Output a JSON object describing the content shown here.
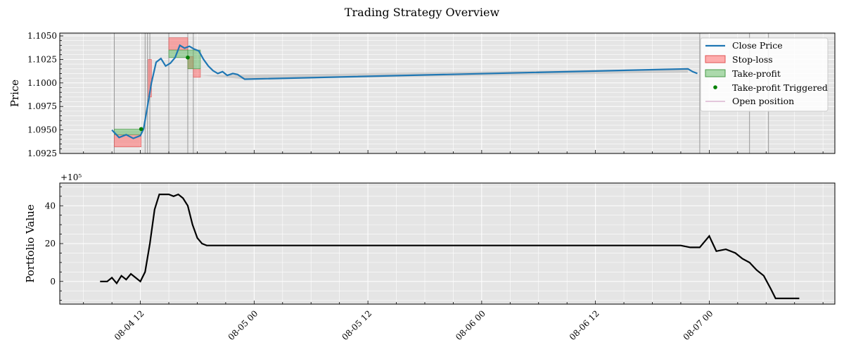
{
  "figure": {
    "title": "Trading Strategy Overview"
  },
  "colors": {
    "axes_bg": "#e5e5e5",
    "grid": "#ffffff",
    "price_line": "#1f77b4",
    "portfolio_line": "#000000",
    "stop_loss": "#ff6b6b",
    "take_profit": "#5cb85c",
    "tp_dot": "#008000",
    "open_position": "#d4a6c8"
  },
  "chart_data": [
    {
      "type": "line",
      "name": "price-panel",
      "ylabel": "Price",
      "x_range": [
        "2024-08-04 03:30",
        "2024-08-07 13:15"
      ],
      "ylim": [
        1.0925,
        1.1053
      ],
      "yticks": [
        1.0925,
        1.095,
        1.0975,
        1.1,
        1.1025,
        1.105
      ],
      "ytick_labels": [
        "1.0925",
        "1.0950",
        "1.0975",
        "1.1000",
        "1.1025",
        "1.1050"
      ],
      "grid": true,
      "legend_position": "top-right",
      "legend": [
        "Close Price",
        "Stop-loss",
        "Take-profit",
        "Take-profit Triggered",
        "Open position"
      ],
      "close_price": {
        "name": "Close Price",
        "x": [
          "2024-08-04 09:00",
          "2024-08-04 09:45",
          "2024-08-04 10:30",
          "2024-08-04 11:15",
          "2024-08-04 12:00",
          "2024-08-04 12:20",
          "2024-08-04 12:45",
          "2024-08-04 13:10",
          "2024-08-04 13:40",
          "2024-08-04 14:10",
          "2024-08-04 14:40",
          "2024-08-04 15:10",
          "2024-08-04 15:40",
          "2024-08-04 16:10",
          "2024-08-04 16:40",
          "2024-08-04 17:10",
          "2024-08-04 17:40",
          "2024-08-04 18:10",
          "2024-08-04 18:40",
          "2024-08-04 19:10",
          "2024-08-04 19:40",
          "2024-08-04 20:10",
          "2024-08-04 20:40",
          "2024-08-04 21:10",
          "2024-08-04 21:45",
          "2024-08-04 22:15",
          "2024-08-04 23:00",
          "2024-08-06 21:45",
          "2024-08-06 22:15",
          "2024-08-06 22:45"
        ],
        "y": [
          1.095,
          1.0942,
          1.0945,
          1.0941,
          1.0944,
          1.0951,
          1.0975,
          1.1,
          1.1022,
          1.1026,
          1.1018,
          1.1021,
          1.1027,
          1.104,
          1.1037,
          1.1039,
          1.1036,
          1.1034,
          1.1025,
          1.1018,
          1.1013,
          1.101,
          1.1012,
          1.1008,
          1.101,
          1.1009,
          1.1004,
          1.1015,
          1.1012,
          1.101
        ]
      },
      "stop_loss_zones": [
        {
          "x0": "2024-08-04 09:15",
          "x1": "2024-08-04 12:05",
          "y0": 1.0932,
          "y1": 1.0945
        },
        {
          "x0": "2024-08-04 12:50",
          "x1": "2024-08-04 13:10",
          "y0": 1.0985,
          "y1": 1.1025
        },
        {
          "x0": "2024-08-04 15:00",
          "x1": "2024-08-04 17:00",
          "y0": 1.1035,
          "y1": 1.1048
        },
        {
          "x0": "2024-08-04 17:00",
          "x1": "2024-08-04 17:35",
          "y0": 1.1015,
          "y1": 1.1028
        },
        {
          "x0": "2024-08-04 17:35",
          "x1": "2024-08-04 18:20",
          "y0": 1.1006,
          "y1": 1.1015
        }
      ],
      "take_profit_zones": [
        {
          "x0": "2024-08-04 09:15",
          "x1": "2024-08-04 12:05",
          "y0": 1.0945,
          "y1": 1.0951
        },
        {
          "x0": "2024-08-04 15:00",
          "x1": "2024-08-04 17:00",
          "y0": 1.1027,
          "y1": 1.1035
        },
        {
          "x0": "2024-08-04 17:00",
          "x1": "2024-08-04 18:20",
          "y0": 1.1015,
          "y1": 1.1035
        }
      ],
      "take_profit_triggered": [
        {
          "x": "2024-08-04 12:05",
          "y": 1.0951
        },
        {
          "x": "2024-08-04 17:00",
          "y": 1.1027
        }
      ],
      "open_positions": [
        "2024-08-04 09:15",
        "2024-08-04 12:30",
        "2024-08-04 12:45",
        "2024-08-04 13:00",
        "2024-08-04 15:00",
        "2024-08-04 17:00",
        "2024-08-04 17:35",
        "2024-08-06 23:00",
        "2024-08-07 04:15",
        "2024-08-07 06:15"
      ]
    },
    {
      "type": "line",
      "name": "portfolio-panel",
      "ylabel": "Portfolio Value",
      "offset_label": "+10⁵",
      "x_range": [
        "2024-08-04 03:30",
        "2024-08-07 13:15"
      ],
      "ylim": [
        -12,
        52
      ],
      "yticks": [
        0,
        20,
        40
      ],
      "ytick_labels": [
        "0",
        "20",
        "40"
      ],
      "xtick_labels": [
        "08-04 12",
        "08-05 00",
        "08-05 12",
        "08-06 00",
        "08-06 12",
        "08-07 00"
      ],
      "xticks": [
        "2024-08-04 12:00",
        "2024-08-05 00:00",
        "2024-08-05 12:00",
        "2024-08-06 00:00",
        "2024-08-06 12:00",
        "2024-08-07 00:00"
      ],
      "grid": true,
      "portfolio_value": {
        "x": [
          "2024-08-04 07:45",
          "2024-08-04 08:30",
          "2024-08-04 09:00",
          "2024-08-04 09:30",
          "2024-08-04 10:00",
          "2024-08-04 10:30",
          "2024-08-04 11:00",
          "2024-08-04 11:30",
          "2024-08-04 12:00",
          "2024-08-04 12:30",
          "2024-08-04 13:00",
          "2024-08-04 13:30",
          "2024-08-04 14:00",
          "2024-08-04 14:30",
          "2024-08-04 15:00",
          "2024-08-04 15:30",
          "2024-08-04 16:00",
          "2024-08-04 16:30",
          "2024-08-04 17:00",
          "2024-08-04 17:30",
          "2024-08-04 18:00",
          "2024-08-04 18:30",
          "2024-08-04 19:00",
          "2024-08-04 19:45",
          "2024-08-06 21:00",
          "2024-08-06 22:00",
          "2024-08-06 23:00",
          "2024-08-07 00:00",
          "2024-08-07 00:45",
          "2024-08-07 01:45",
          "2024-08-07 02:45",
          "2024-08-07 03:30",
          "2024-08-07 04:15",
          "2024-08-07 05:00",
          "2024-08-07 05:45",
          "2024-08-07 06:30",
          "2024-08-07 07:00",
          "2024-08-07 07:30",
          "2024-08-07 08:00",
          "2024-08-07 09:30"
        ],
        "y": [
          0,
          0,
          2,
          -1,
          3,
          1,
          4,
          2,
          0,
          5,
          20,
          38,
          46,
          46,
          46,
          45,
          46,
          44,
          40,
          30,
          23,
          20,
          19,
          19,
          19,
          18,
          18,
          24,
          16,
          17,
          15,
          12,
          10,
          6,
          3,
          -4,
          -9,
          -9,
          -9,
          -9
        ]
      }
    }
  ]
}
